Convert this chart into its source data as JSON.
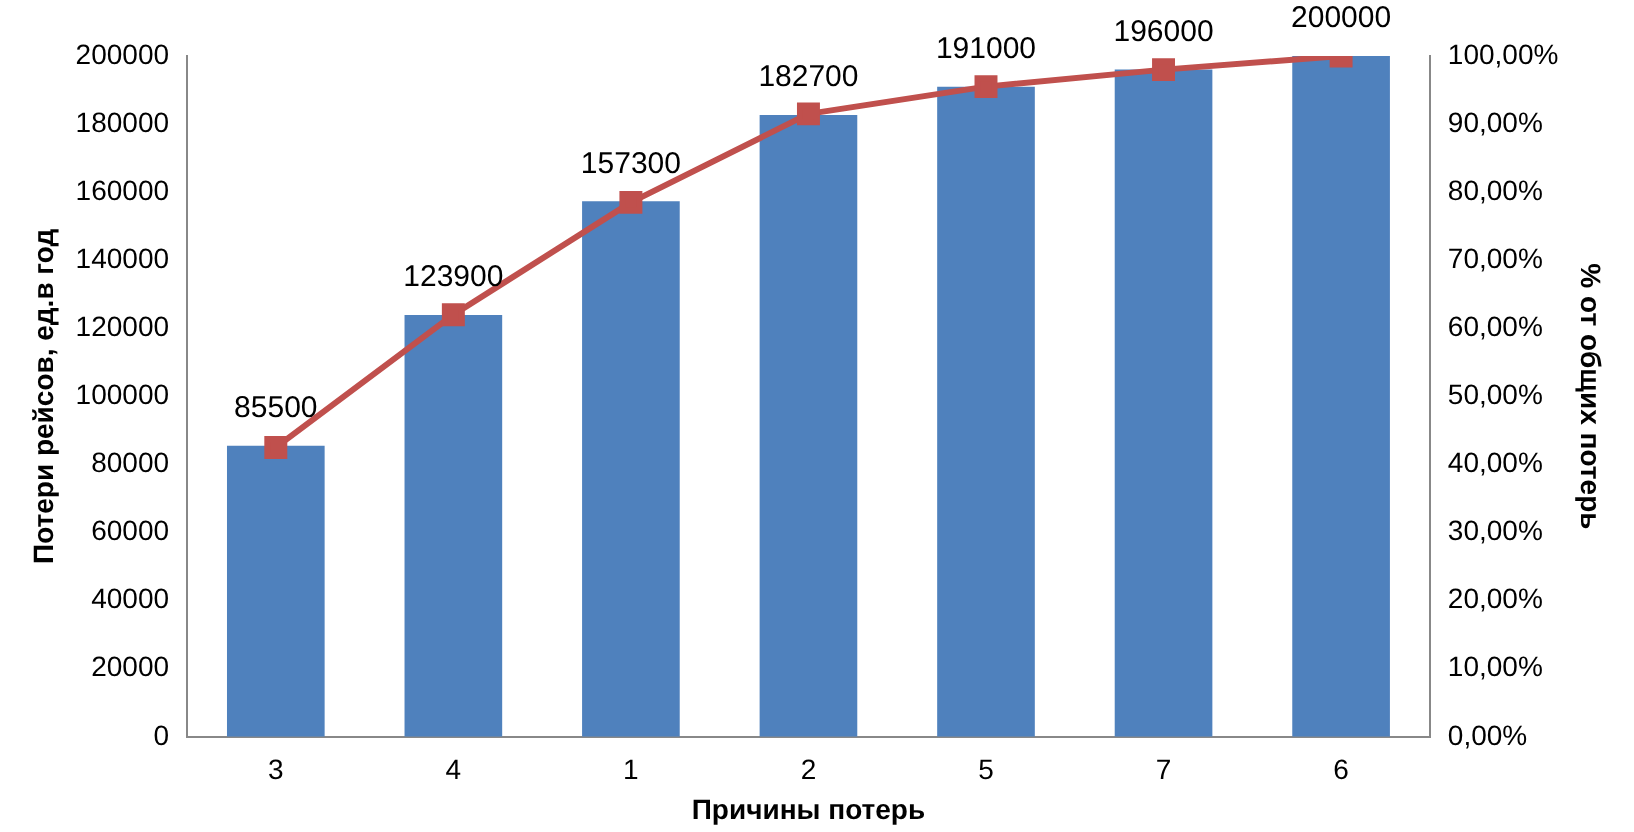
{
  "chart_data": {
    "type": "bar",
    "xlabel": "Причины потерь",
    "ylabel": "Потери рейсов, ед.в год",
    "y2label": "% от общих потерь",
    "categories": [
      "3",
      "4",
      "1",
      "2",
      "5",
      "7",
      "6"
    ],
    "series": [
      {
        "color": "#4f81bd",
        "values": [
          85500,
          123900,
          157300,
          182700,
          191000,
          196000,
          200000
        ],
        "value_labels": [
          "85500",
          "123900",
          "157300",
          "182700",
          "191000",
          "196000",
          "200000"
        ]
      },
      {
        "type": "line",
        "axis": "y2",
        "color": "#c0504d",
        "values": [
          42.5,
          62,
          78.5,
          91.5,
          95.5,
          98,
          100
        ]
      }
    ],
    "ylim": [
      0,
      200000
    ],
    "yticks": [
      0,
      20000,
      40000,
      60000,
      80000,
      100000,
      120000,
      140000,
      160000,
      180000,
      200000
    ],
    "y2lim": [
      0,
      100
    ],
    "y2ticks": [
      {
        "value": 0,
        "label": "0,00%"
      },
      {
        "value": 10,
        "label": "10,00%"
      },
      {
        "value": 20,
        "label": "20,00%"
      },
      {
        "value": 30,
        "label": "30,00%"
      },
      {
        "value": 40,
        "label": "40,00%"
      },
      {
        "value": 50,
        "label": "50,00%"
      },
      {
        "value": 60,
        "label": "60,00%"
      },
      {
        "value": 70,
        "label": "70,00%"
      },
      {
        "value": 80,
        "label": "80,00%"
      },
      {
        "value": 90,
        "label": "90,00%"
      },
      {
        "value": 100,
        "label": "100,00%"
      }
    ],
    "grid": false,
    "legend": false,
    "marker": "square",
    "line_style": "solid"
  }
}
